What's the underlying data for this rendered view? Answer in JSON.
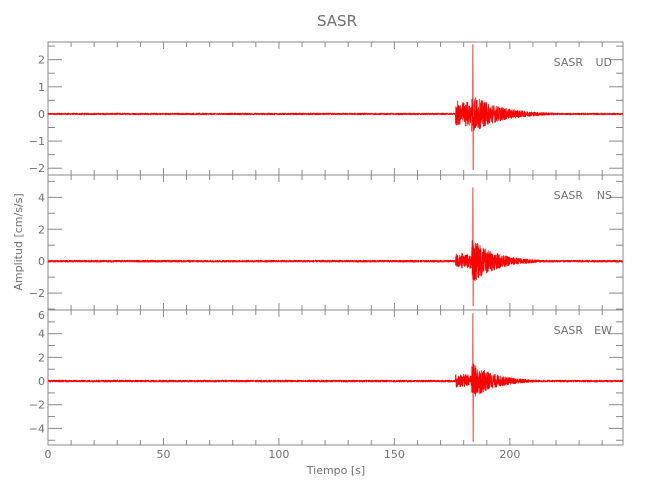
{
  "chart_data": {
    "type": "line",
    "title": "SASR",
    "xlabel": "Tiempo [s]",
    "ylabel": "Amplitud [cm/s/s]",
    "xlim": [
      0,
      249
    ],
    "x_ticks": [
      0,
      50,
      100,
      150,
      200
    ],
    "grid": false,
    "color": "#ff0000",
    "axis_color": "#8a8a8a",
    "panels": [
      {
        "label_station": "SASR",
        "label_component": "UD",
        "ylim": [
          -2.25,
          2.65
        ],
        "y_ticks": [
          -2,
          -1,
          0,
          1,
          2
        ],
        "y_minor": 0.5,
        "envelope": {
          "noise": 0.03,
          "onset_s": 176.5,
          "onset_amp": 0.5,
          "peak_s": 184,
          "peak_max": 2.55,
          "peak_min": -2.05,
          "coda_amp": 0.7,
          "decay_s": 12
        }
      },
      {
        "label_station": "SASR",
        "label_component": "NS",
        "ylim": [
          -3.06,
          5.4
        ],
        "y_ticks": [
          -2,
          0,
          2,
          4
        ],
        "y_minor": 1,
        "envelope": {
          "noise": 0.06,
          "onset_s": 176.5,
          "onset_amp": 0.5,
          "peak_s": 184,
          "peak_max": 4.6,
          "peak_min": -2.8,
          "coda_amp": 1.4,
          "decay_s": 10
        }
      },
      {
        "label_station": "SASR",
        "label_component": "EW",
        "ylim": [
          -5.4,
          6
        ],
        "y_ticks": [
          -4,
          -2,
          0,
          2,
          4,
          6
        ],
        "y_minor": 1,
        "envelope": {
          "noise": 0.08,
          "onset_s": 176.5,
          "onset_amp": 0.6,
          "peak_s": 184,
          "peak_max": 5.7,
          "peak_min": -5.1,
          "coda_amp": 1.5,
          "decay_s": 10
        }
      }
    ]
  }
}
